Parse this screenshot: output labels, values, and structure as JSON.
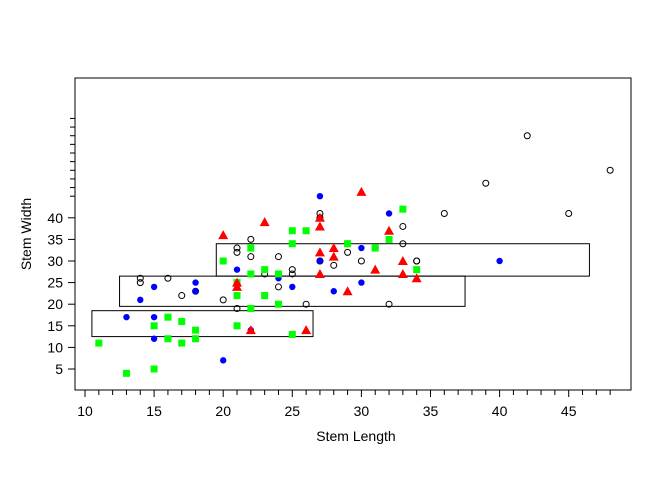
{
  "chart_data": {
    "type": "scatter",
    "title": "",
    "xlabel": "Stem Length",
    "ylabel": "Stem Width",
    "xlim": [
      10,
      48
    ],
    "ylim": [
      3,
      63
    ],
    "x_ticks": [
      10,
      15,
      20,
      25,
      30,
      35,
      40,
      45
    ],
    "y_ticks": [
      5,
      10,
      15,
      20,
      25,
      30,
      35,
      40
    ],
    "y_minor_ticks": [
      45,
      47,
      49,
      51,
      53,
      55,
      57,
      59,
      61,
      63
    ],
    "grid": false,
    "legend": "none",
    "colors": {
      "open_circle": "#000000",
      "blue_circle": "#0000ff",
      "green_square": "#00ff00",
      "red_triangle": "#ff0000"
    },
    "series": [
      {
        "marker": "open-circle",
        "color": "#000000",
        "points": [
          [
            14,
            26
          ],
          [
            14,
            25
          ],
          [
            16,
            26
          ],
          [
            17,
            22
          ],
          [
            18,
            23
          ],
          [
            20,
            21
          ],
          [
            21,
            33
          ],
          [
            21,
            32
          ],
          [
            21,
            19
          ],
          [
            22,
            35
          ],
          [
            22,
            31
          ],
          [
            23,
            27
          ],
          [
            24,
            31
          ],
          [
            24,
            24
          ],
          [
            25,
            28
          ],
          [
            25,
            27
          ],
          [
            26,
            20
          ],
          [
            27,
            30
          ],
          [
            27,
            30
          ],
          [
            27,
            41
          ],
          [
            27,
            40
          ],
          [
            28,
            29
          ],
          [
            29,
            34
          ],
          [
            29,
            32
          ],
          [
            30,
            30
          ],
          [
            31,
            33
          ],
          [
            32,
            20
          ],
          [
            33,
            38
          ],
          [
            33,
            34
          ],
          [
            34,
            30
          ],
          [
            34,
            30
          ],
          [
            36,
            41
          ],
          [
            39,
            48
          ],
          [
            42,
            59
          ],
          [
            45,
            41
          ],
          [
            48,
            51
          ]
        ]
      },
      {
        "marker": "filled-circle",
        "color": "#0000ff",
        "points": [
          [
            13,
            17
          ],
          [
            14,
            21
          ],
          [
            15,
            24
          ],
          [
            15,
            17
          ],
          [
            15,
            12
          ],
          [
            18,
            25
          ],
          [
            18,
            23
          ],
          [
            20,
            7
          ],
          [
            21,
            28
          ],
          [
            22,
            14
          ],
          [
            24,
            26
          ],
          [
            25,
            24
          ],
          [
            27,
            45
          ],
          [
            27,
            30
          ],
          [
            28,
            23
          ],
          [
            30,
            33
          ],
          [
            30,
            25
          ],
          [
            32,
            41
          ],
          [
            40,
            30
          ]
        ]
      },
      {
        "marker": "filled-square",
        "color": "#00ff00",
        "points": [
          [
            11,
            11
          ],
          [
            13,
            4
          ],
          [
            15,
            15
          ],
          [
            15,
            5
          ],
          [
            16,
            17
          ],
          [
            16,
            12
          ],
          [
            17,
            16
          ],
          [
            17,
            11
          ],
          [
            18,
            14
          ],
          [
            18,
            12
          ],
          [
            20,
            30
          ],
          [
            21,
            25
          ],
          [
            21,
            22
          ],
          [
            21,
            15
          ],
          [
            22,
            33
          ],
          [
            22,
            27
          ],
          [
            22,
            19
          ],
          [
            23,
            28
          ],
          [
            23,
            22
          ],
          [
            24,
            27
          ],
          [
            24,
            20
          ],
          [
            25,
            37
          ],
          [
            25,
            34
          ],
          [
            25,
            13
          ],
          [
            26,
            37
          ],
          [
            29,
            34
          ],
          [
            31,
            33
          ],
          [
            32,
            35
          ],
          [
            33,
            42
          ],
          [
            34,
            28
          ]
        ]
      },
      {
        "marker": "filled-triangle",
        "color": "#ff0000",
        "points": [
          [
            20,
            36
          ],
          [
            21,
            25
          ],
          [
            21,
            24
          ],
          [
            22,
            14
          ],
          [
            23,
            39
          ],
          [
            26,
            14
          ],
          [
            27,
            40
          ],
          [
            27,
            38
          ],
          [
            27,
            32
          ],
          [
            27,
            27
          ],
          [
            28,
            33
          ],
          [
            28,
            31
          ],
          [
            29,
            23
          ],
          [
            30,
            46
          ],
          [
            31,
            28
          ],
          [
            32,
            37
          ],
          [
            33,
            30
          ],
          [
            33,
            27
          ],
          [
            34,
            26
          ]
        ]
      }
    ],
    "rectangles": [
      {
        "x0": 10.5,
        "x1": 26.5,
        "y0": 12.5,
        "y1": 18.5
      },
      {
        "x0": 12.5,
        "x1": 37.5,
        "y0": 19.5,
        "y1": 26.5
      },
      {
        "x0": 19.5,
        "x1": 46.5,
        "y0": 26.5,
        "y1": 34.0
      }
    ]
  }
}
